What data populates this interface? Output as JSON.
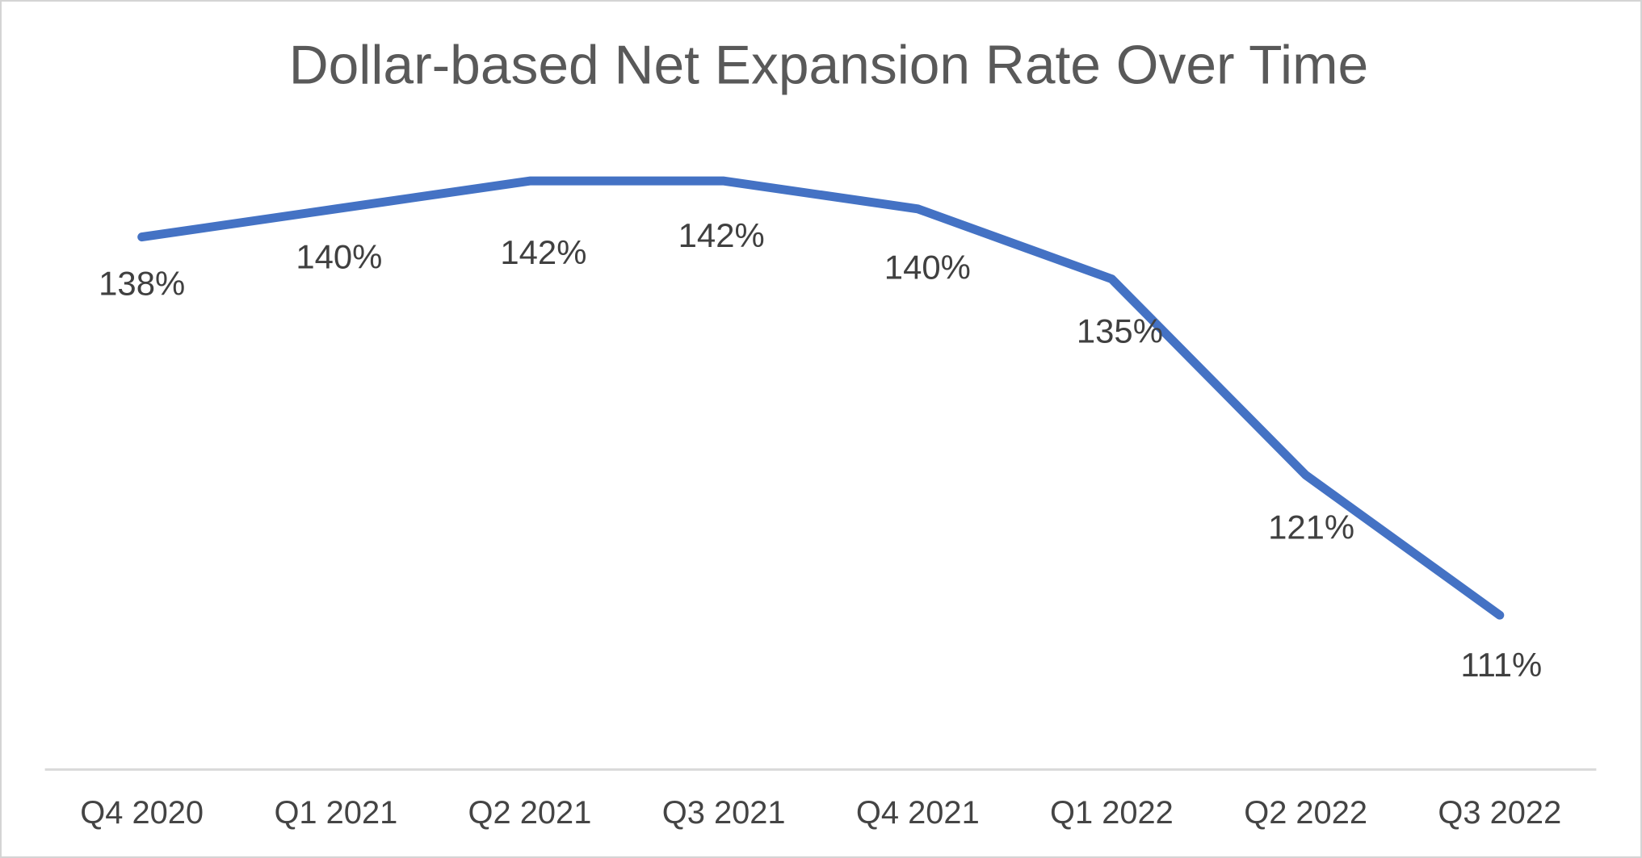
{
  "chart_data": {
    "type": "line",
    "title": "Dollar-based Net Expansion Rate Over Time",
    "categories": [
      "Q4 2020",
      "Q1 2021",
      "Q2 2021",
      "Q3 2021",
      "Q4 2021",
      "Q1 2022",
      "Q2 2022",
      "Q3 2022"
    ],
    "values": [
      138,
      140,
      142,
      142,
      140,
      135,
      121,
      111
    ],
    "data_labels": [
      "138%",
      "140%",
      "142%",
      "142%",
      "140%",
      "135%",
      "121%",
      "111%"
    ],
    "data_label_position": "below",
    "xlabel": "",
    "ylabel": "",
    "y_axis_visible": false,
    "grid": false,
    "legend": false,
    "colors": {
      "line": "#4472C4",
      "title_text": "#595959",
      "data_label_text": "#404040",
      "axis_label_text": "#444444",
      "axis_line": "#D9D9D9",
      "background": "#FFFFFF",
      "frame_border": "#D4D4D4"
    }
  }
}
